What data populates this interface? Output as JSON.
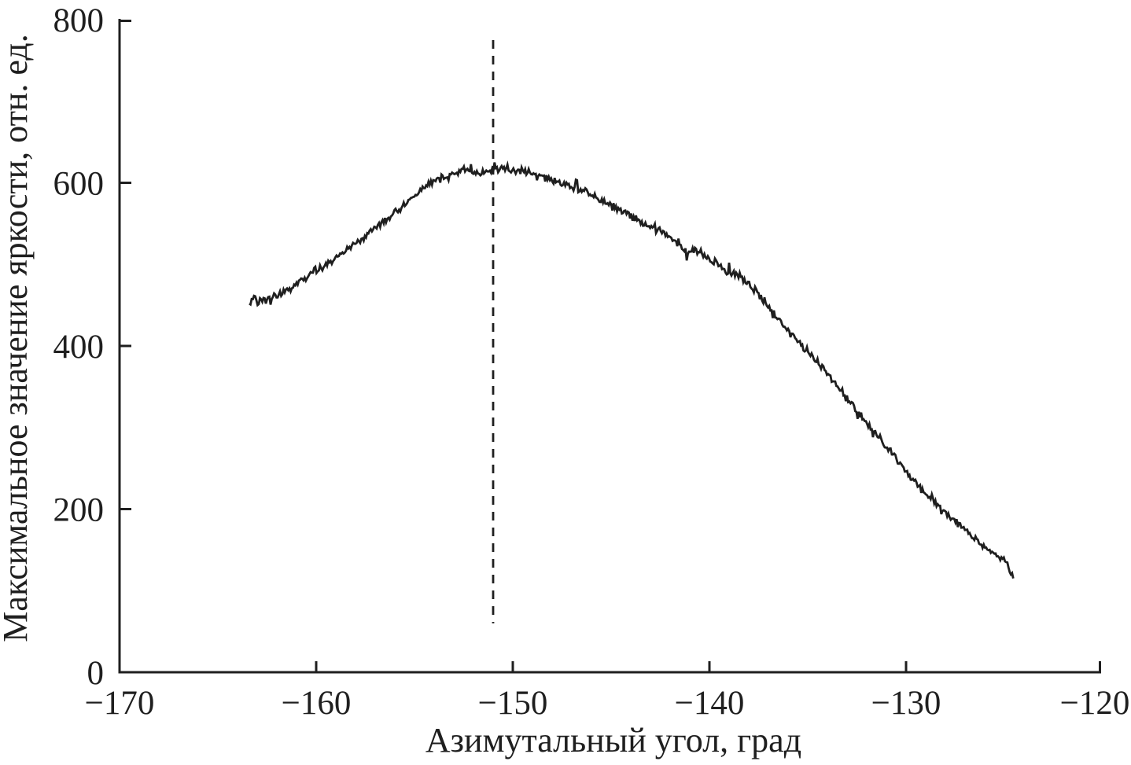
{
  "figure": {
    "background": "#ffffff",
    "ink_color": "#1f1f1f"
  },
  "chart_data": {
    "type": "line",
    "title": "",
    "xlabel": "Азимутальный угол, град",
    "ylabel": "Максимальное значение яркости, отн. ед.",
    "xlim": [
      -170,
      -120
    ],
    "ylim": [
      0,
      800
    ],
    "grid": false,
    "legend": "none",
    "x_ticks": [
      {
        "value": -170,
        "label": "−170",
        "mark": false
      },
      {
        "value": -160,
        "label": "−160",
        "mark": true
      },
      {
        "value": -150,
        "label": "−150",
        "mark": true
      },
      {
        "value": -140,
        "label": "−140",
        "mark": true
      },
      {
        "value": -130,
        "label": "−130",
        "mark": true
      },
      {
        "value": -120,
        "label": "−120",
        "mark": true
      }
    ],
    "y_ticks": [
      {
        "value": 0,
        "label": "0",
        "mark": false
      },
      {
        "value": 200,
        "label": "200",
        "mark": true
      },
      {
        "value": 400,
        "label": "400",
        "mark": true
      },
      {
        "value": 600,
        "label": "600",
        "mark": true
      },
      {
        "value": 800,
        "label": "800",
        "mark": true
      }
    ],
    "series": [
      {
        "name": "max-brightness-profile",
        "style": "noisy-line",
        "color": "#1f1f1f",
        "noise_amplitude": 5.5,
        "anchor_points": [
          [
            -163.4,
            452
          ],
          [
            -163.2,
            461
          ],
          [
            -163.0,
            453
          ],
          [
            -162.8,
            459
          ],
          [
            -162.6,
            453
          ],
          [
            -162.4,
            459
          ],
          [
            -162.1,
            461
          ],
          [
            -161.7,
            465
          ],
          [
            -161.3,
            471
          ],
          [
            -160.9,
            477
          ],
          [
            -160.5,
            484
          ],
          [
            -160.1,
            491
          ],
          [
            -159.7,
            497
          ],
          [
            -159.3,
            503
          ],
          [
            -158.9,
            509
          ],
          [
            -158.5,
            516
          ],
          [
            -158.1,
            523
          ],
          [
            -157.7,
            530
          ],
          [
            -157.3,
            538
          ],
          [
            -156.9,
            545
          ],
          [
            -156.5,
            553
          ],
          [
            -156.1,
            561
          ],
          [
            -155.7,
            569
          ],
          [
            -155.3,
            578
          ],
          [
            -154.9,
            587
          ],
          [
            -154.5,
            594
          ],
          [
            -154.1,
            600
          ],
          [
            -153.7,
            606
          ],
          [
            -153.3,
            610
          ],
          [
            -152.9,
            613
          ],
          [
            -152.5,
            616
          ],
          [
            -152.1,
            614
          ],
          [
            -151.7,
            613
          ],
          [
            -151.3,
            613
          ],
          [
            -150.9,
            616
          ],
          [
            -150.5,
            617
          ],
          [
            -150.1,
            613
          ],
          [
            -149.7,
            615
          ],
          [
            -149.3,
            614
          ],
          [
            -149.0,
            611
          ],
          [
            -148.6,
            608
          ],
          [
            -148.2,
            605
          ],
          [
            -147.8,
            602
          ],
          [
            -147.4,
            598
          ],
          [
            -147.0,
            595
          ],
          [
            -146.6,
            591
          ],
          [
            -146.2,
            587
          ],
          [
            -145.8,
            583
          ],
          [
            -145.4,
            578
          ],
          [
            -145.0,
            572
          ],
          [
            -144.6,
            567
          ],
          [
            -144.2,
            562
          ],
          [
            -143.8,
            556
          ],
          [
            -143.4,
            551
          ],
          [
            -143.0,
            545
          ],
          [
            -142.6,
            542
          ],
          [
            -142.2,
            537
          ],
          [
            -141.8,
            530
          ],
          [
            -141.4,
            522
          ],
          [
            -141.1,
            514
          ],
          [
            -140.8,
            518
          ],
          [
            -140.5,
            516
          ],
          [
            -140.2,
            512
          ],
          [
            -139.9,
            506
          ],
          [
            -139.6,
            501
          ],
          [
            -139.3,
            495
          ],
          [
            -139.0,
            491
          ],
          [
            -138.6,
            487
          ],
          [
            -138.2,
            480
          ],
          [
            -137.8,
            471
          ],
          [
            -137.4,
            460
          ],
          [
            -137.0,
            448
          ],
          [
            -136.6,
            436
          ],
          [
            -136.2,
            424
          ],
          [
            -135.8,
            414
          ],
          [
            -135.4,
            404
          ],
          [
            -135.0,
            393
          ],
          [
            -134.6,
            382
          ],
          [
            -134.2,
            372
          ],
          [
            -133.8,
            359
          ],
          [
            -133.4,
            347
          ],
          [
            -133.0,
            335
          ],
          [
            -132.6,
            323
          ],
          [
            -132.2,
            311
          ],
          [
            -131.8,
            299
          ],
          [
            -131.4,
            288
          ],
          [
            -131.0,
            277
          ],
          [
            -130.6,
            265
          ],
          [
            -130.2,
            253
          ],
          [
            -129.8,
            241
          ],
          [
            -129.4,
            230
          ],
          [
            -129.0,
            220
          ],
          [
            -128.6,
            211
          ],
          [
            -128.2,
            201
          ],
          [
            -127.8,
            191
          ],
          [
            -127.4,
            183
          ],
          [
            -127.0,
            174
          ],
          [
            -126.6,
            167
          ],
          [
            -126.2,
            158
          ],
          [
            -125.8,
            150
          ],
          [
            -125.4,
            143
          ],
          [
            -125.0,
            137
          ],
          [
            -124.8,
            131
          ],
          [
            -124.65,
            122
          ],
          [
            -124.55,
            115
          ]
        ]
      }
    ],
    "annotations": [
      {
        "type": "vline",
        "name": "peak-position-marker",
        "x": -151,
        "y_from": 60,
        "y_to": 775,
        "style": "dashed",
        "color": "#1f1f1f"
      }
    ]
  }
}
